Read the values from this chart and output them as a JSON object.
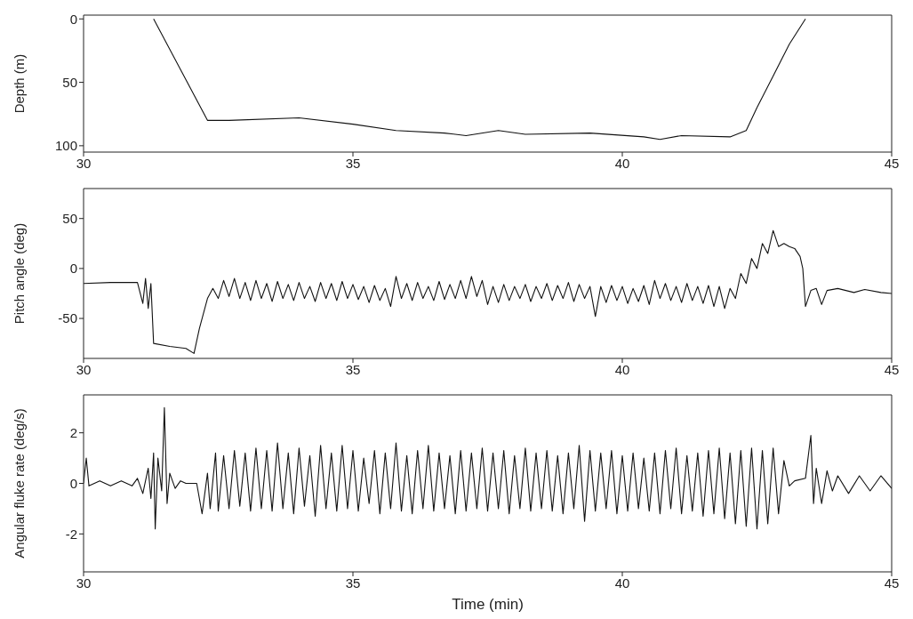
{
  "chart_data": [
    {
      "type": "line",
      "ylabel": "Depth (m)",
      "xlim": [
        30,
        45
      ],
      "xticks": [
        30,
        35,
        40,
        45
      ],
      "ylim": [
        105,
        -3
      ],
      "yticks": [
        0,
        50,
        100
      ],
      "color": "#111111",
      "x": [
        31.3,
        32.3,
        32.7,
        34.0,
        35.0,
        35.8,
        36.7,
        37.1,
        37.7,
        38.2,
        39.4,
        40.4,
        40.7,
        41.1,
        42.0,
        42.3,
        42.5,
        42.8,
        43.1,
        43.4
      ],
      "values": [
        0,
        80,
        80,
        78,
        83,
        88,
        90,
        92,
        88,
        91,
        90,
        93,
        95,
        92,
        93,
        88,
        70,
        45,
        20,
        0
      ]
    },
    {
      "type": "line",
      "ylabel": "Pitch angle (deg)",
      "xlim": [
        30,
        45
      ],
      "xticks": [
        30,
        35,
        40,
        45
      ],
      "ylim": [
        -90,
        80
      ],
      "yticks": [
        -50,
        0,
        50
      ],
      "color": "#111111",
      "x": [
        30,
        30.5,
        31.0,
        31.1,
        31.15,
        31.2,
        31.25,
        31.3,
        31.6,
        31.9,
        32.05,
        32.15,
        32.3,
        32.4,
        32.5,
        32.6,
        32.7,
        32.8,
        32.9,
        33.0,
        33.1,
        33.2,
        33.3,
        33.4,
        33.5,
        33.6,
        33.7,
        33.8,
        33.9,
        34.0,
        34.1,
        34.2,
        34.3,
        34.4,
        34.5,
        34.6,
        34.7,
        34.8,
        34.9,
        35.0,
        35.1,
        35.2,
        35.3,
        35.4,
        35.5,
        35.6,
        35.7,
        35.8,
        35.9,
        36.0,
        36.1,
        36.2,
        36.3,
        36.4,
        36.5,
        36.6,
        36.7,
        36.8,
        36.9,
        37.0,
        37.1,
        37.2,
        37.3,
        37.4,
        37.5,
        37.6,
        37.7,
        37.8,
        37.9,
        38.0,
        38.1,
        38.2,
        38.3,
        38.4,
        38.5,
        38.6,
        38.7,
        38.8,
        38.9,
        39.0,
        39.1,
        39.2,
        39.3,
        39.4,
        39.5,
        39.6,
        39.7,
        39.8,
        39.9,
        40.0,
        40.1,
        40.2,
        40.3,
        40.4,
        40.5,
        40.6,
        40.7,
        40.8,
        40.9,
        41.0,
        41.1,
        41.2,
        41.3,
        41.4,
        41.5,
        41.6,
        41.7,
        41.8,
        41.9,
        42.0,
        42.1,
        42.2,
        42.3,
        42.4,
        42.5,
        42.6,
        42.7,
        42.8,
        42.9,
        43.0,
        43.1,
        43.2,
        43.3,
        43.35,
        43.4,
        43.5,
        43.6,
        43.7,
        43.8,
        44.0,
        44.3,
        44.5,
        44.8,
        45.0
      ],
      "values": [
        -15,
        -14,
        -14,
        -35,
        -10,
        -40,
        -15,
        -75,
        -78,
        -80,
        -85,
        -60,
        -30,
        -20,
        -30,
        -12,
        -28,
        -10,
        -30,
        -14,
        -32,
        -12,
        -30,
        -15,
        -33,
        -13,
        -30,
        -16,
        -32,
        -14,
        -30,
        -18,
        -33,
        -14,
        -30,
        -15,
        -32,
        -13,
        -30,
        -16,
        -31,
        -18,
        -34,
        -17,
        -32,
        -20,
        -38,
        -8,
        -30,
        -15,
        -32,
        -14,
        -30,
        -18,
        -32,
        -13,
        -31,
        -16,
        -30,
        -12,
        -30,
        -8,
        -28,
        -12,
        -36,
        -18,
        -34,
        -16,
        -32,
        -18,
        -30,
        -16,
        -33,
        -18,
        -30,
        -15,
        -32,
        -17,
        -30,
        -14,
        -33,
        -16,
        -30,
        -18,
        -48,
        -18,
        -34,
        -17,
        -32,
        -18,
        -35,
        -20,
        -33,
        -17,
        -36,
        -12,
        -30,
        -15,
        -32,
        -18,
        -34,
        -15,
        -32,
        -18,
        -35,
        -17,
        -38,
        -18,
        -40,
        -20,
        -30,
        -5,
        -15,
        10,
        0,
        25,
        15,
        38,
        22,
        25,
        22,
        20,
        12,
        0,
        -38,
        -22,
        -20,
        -36,
        -22,
        -20,
        -24,
        -21,
        -24,
        -25
      ]
    },
    {
      "type": "line",
      "ylabel": "Angular fluke rate (deg/s)",
      "xlabel": "Time (min)",
      "xlim": [
        30,
        45
      ],
      "xticks": [
        30,
        35,
        40,
        45
      ],
      "ylim": [
        -3.5,
        3.5
      ],
      "yticks": [
        -2,
        0,
        2
      ],
      "color": "#111111",
      "x": [
        30.0,
        30.05,
        30.1,
        30.3,
        30.5,
        30.7,
        30.9,
        31.0,
        31.1,
        31.2,
        31.25,
        31.3,
        31.33,
        31.38,
        31.45,
        31.5,
        31.55,
        31.6,
        31.7,
        31.8,
        31.9,
        32.1,
        32.2,
        32.3,
        32.35,
        32.45,
        32.5,
        32.6,
        32.7,
        32.8,
        32.9,
        33.0,
        33.1,
        33.2,
        33.3,
        33.4,
        33.5,
        33.6,
        33.7,
        33.8,
        33.9,
        34.0,
        34.1,
        34.2,
        34.3,
        34.4,
        34.5,
        34.6,
        34.7,
        34.8,
        34.9,
        35.0,
        35.1,
        35.2,
        35.3,
        35.4,
        35.5,
        35.6,
        35.7,
        35.8,
        35.9,
        36.0,
        36.1,
        36.2,
        36.3,
        36.4,
        36.5,
        36.6,
        36.7,
        36.8,
        36.9,
        37.0,
        37.1,
        37.2,
        37.3,
        37.4,
        37.5,
        37.6,
        37.7,
        37.8,
        37.9,
        38.0,
        38.1,
        38.2,
        38.3,
        38.4,
        38.5,
        38.6,
        38.7,
        38.8,
        38.9,
        39.0,
        39.1,
        39.2,
        39.3,
        39.4,
        39.5,
        39.6,
        39.7,
        39.8,
        39.9,
        40.0,
        40.1,
        40.2,
        40.3,
        40.4,
        40.5,
        40.6,
        40.7,
        40.8,
        40.9,
        41.0,
        41.1,
        41.2,
        41.3,
        41.4,
        41.5,
        41.6,
        41.7,
        41.8,
        41.9,
        42.0,
        42.1,
        42.2,
        42.3,
        42.4,
        42.5,
        42.6,
        42.7,
        42.8,
        42.9,
        43.0,
        43.1,
        43.2,
        43.4,
        43.5,
        43.55,
        43.6,
        43.7,
        43.8,
        43.9,
        44.0,
        44.2,
        44.4,
        44.6,
        44.8,
        45.0
      ],
      "values": [
        0,
        1.0,
        -0.1,
        0.1,
        -0.1,
        0.1,
        -0.1,
        0.2,
        -0.4,
        0.6,
        -0.6,
        1.2,
        -1.8,
        1.0,
        -0.3,
        3.0,
        -0.8,
        0.4,
        -0.2,
        0.1,
        0,
        0,
        -1.2,
        0.4,
        -1.0,
        1.2,
        -1.1,
        1.1,
        -1.0,
        1.3,
        -0.9,
        1.2,
        -1.1,
        1.4,
        -1.0,
        1.3,
        -1.1,
        1.6,
        -1.0,
        1.2,
        -1.2,
        1.4,
        -0.9,
        1.1,
        -1.3,
        1.5,
        -1.0,
        1.2,
        -1.1,
        1.5,
        -1.0,
        1.3,
        -1.1,
        1.0,
        -0.8,
        1.3,
        -1.2,
        1.2,
        -1.0,
        1.6,
        -1.1,
        1.1,
        -1.2,
        1.3,
        -1.0,
        1.5,
        -1.1,
        1.2,
        -1.0,
        1.1,
        -1.2,
        1.3,
        -1.1,
        1.2,
        -1.0,
        1.4,
        -1.1,
        1.2,
        -1.0,
        1.3,
        -1.2,
        1.1,
        -1.0,
        1.4,
        -1.1,
        1.2,
        -1.0,
        1.3,
        -1.1,
        1.1,
        -1.2,
        1.2,
        -1.0,
        1.5,
        -1.5,
        1.3,
        -1.1,
        1.2,
        -1.0,
        1.3,
        -1.2,
        1.1,
        -1.1,
        1.2,
        -1.0,
        1.0,
        -1.1,
        1.2,
        -1.2,
        1.3,
        -1.0,
        1.4,
        -1.2,
        1.1,
        -1.1,
        1.2,
        -1.3,
        1.3,
        -1.2,
        1.4,
        -1.4,
        1.2,
        -1.6,
        1.3,
        -1.7,
        1.4,
        -1.8,
        1.3,
        -1.6,
        1.4,
        -1.2,
        0.9,
        -0.1,
        0.1,
        0.2,
        1.9,
        -0.8,
        0.6,
        -0.8,
        0.5,
        -0.3,
        0.3,
        -0.4,
        0.3,
        -0.3,
        0.3,
        -0.2
      ]
    }
  ]
}
